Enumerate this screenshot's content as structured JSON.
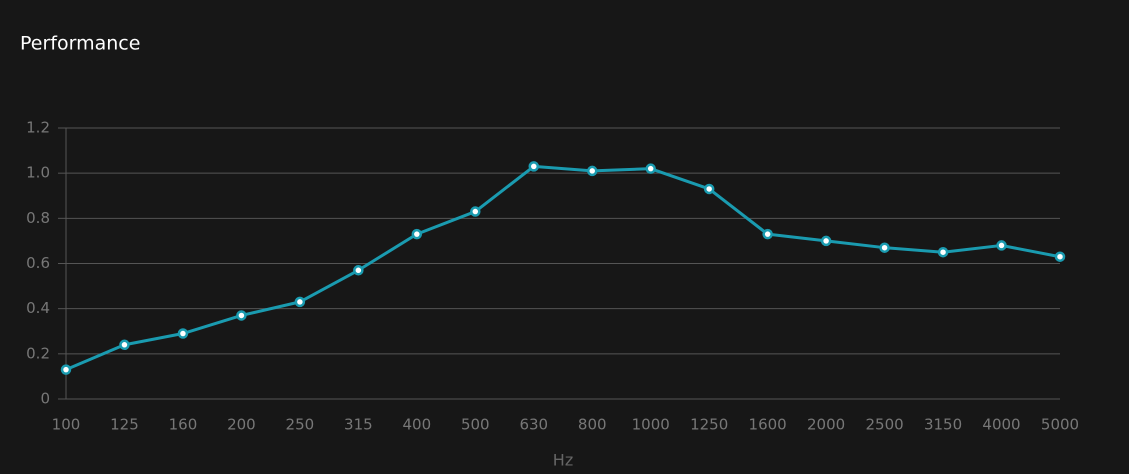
{
  "chart_data": {
    "type": "line",
    "title": "Performance",
    "x_label": "Hz",
    "categories": [
      "100",
      "125",
      "160",
      "200",
      "250",
      "315",
      "400",
      "500",
      "630",
      "800",
      "1000",
      "1250",
      "1600",
      "2000",
      "2500",
      "3150",
      "4000",
      "5000"
    ],
    "values": [
      0.13,
      0.24,
      0.29,
      0.37,
      0.43,
      0.57,
      0.73,
      0.83,
      1.03,
      1.01,
      1.02,
      0.93,
      0.73,
      0.7,
      0.67,
      0.65,
      0.68,
      0.63
    ],
    "color": "#1a9bb0",
    "ylim": [
      0,
      1.2
    ],
    "yticks": [
      0,
      0.2,
      0.4,
      0.6,
      0.8,
      {
        "value": 1,
        "label": "1.0"
      },
      1.2
    ],
    "grid": true
  }
}
